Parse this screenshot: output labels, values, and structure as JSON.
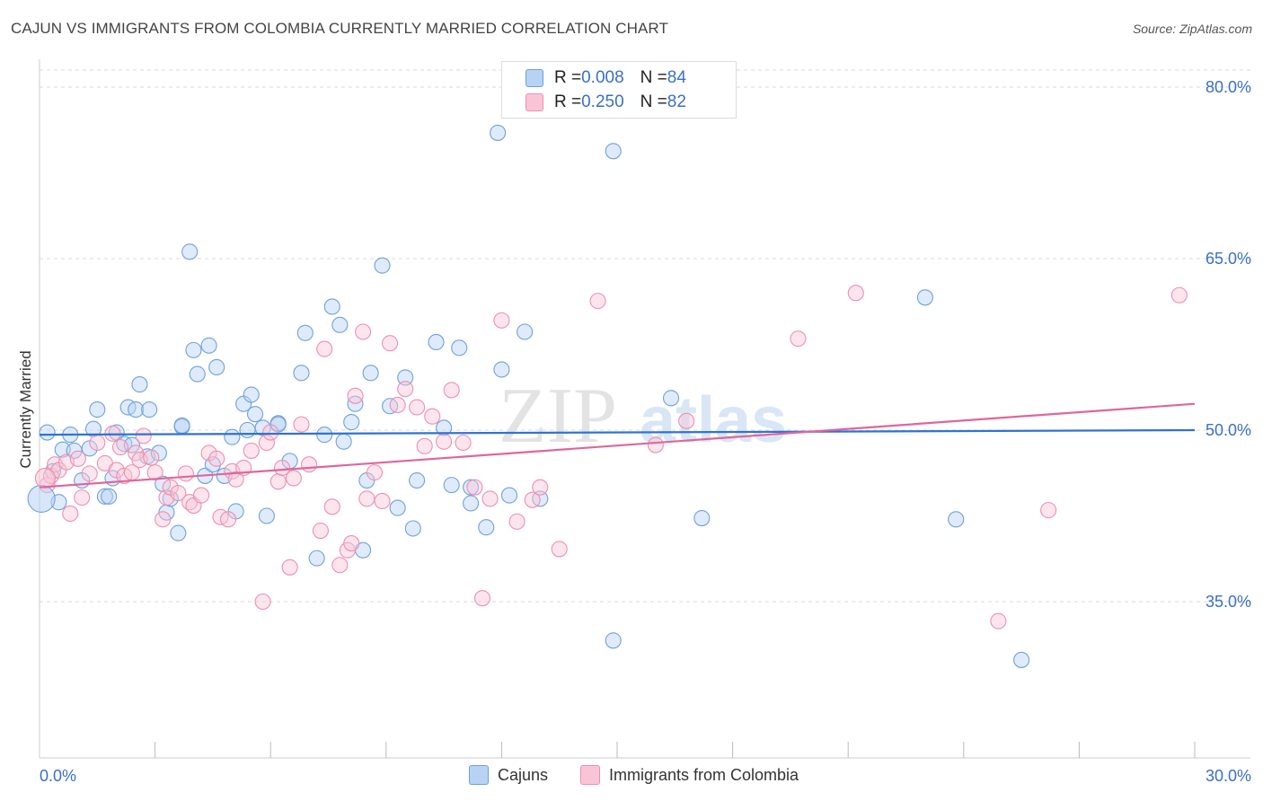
{
  "title": "CAJUN VS IMMIGRANTS FROM COLOMBIA CURRENTLY MARRIED CORRELATION CHART",
  "source": "Source: ZipAtlas.com",
  "watermark": "ZIPatlas",
  "colors": {
    "blue": "#6fa0dd",
    "blue_fill": "#b8d2f4",
    "blue_line": "#2f72d6",
    "pink": "#ee8fb0",
    "pink_fill": "#f9c5d6",
    "pink_line": "#e0669a",
    "axis_label": "#3a6fc9",
    "grid": "#d8d8d8"
  },
  "legend": {
    "rows": [
      {
        "r_label": "R = ",
        "r_value": "0.008",
        "n_label": "N = ",
        "n_value": "84",
        "series": "blue"
      },
      {
        "r_label": "R = ",
        "r_value": "0.250",
        "n_label": "N = ",
        "n_value": "82",
        "series": "pink"
      }
    ]
  },
  "chart_data": {
    "type": "scatter",
    "title": "CAJUN VS IMMIGRANTS FROM COLOMBIA CURRENTLY MARRIED CORRELATION CHART",
    "xlabel": "",
    "ylabel": "Currently Married",
    "xlim": [
      0,
      30
    ],
    "ylim": [
      20,
      82
    ],
    "x_tick_labels": [
      {
        "value": 0,
        "label": "0.0%"
      },
      {
        "value": 30,
        "label": "30.0%"
      }
    ],
    "y_tick_labels": [
      {
        "value": 80,
        "label": "80.0%"
      },
      {
        "value": 65,
        "label": "65.0%"
      },
      {
        "value": 50,
        "label": "50.0%"
      },
      {
        "value": 35,
        "label": "35.0%"
      }
    ],
    "grid": true,
    "legend_position": "top-center",
    "series": [
      {
        "name": "Cajuns",
        "color": "blue",
        "trend": {
          "x": [
            0,
            30
          ],
          "y": [
            49.6,
            50.0
          ]
        },
        "points": [
          [
            0.2,
            49.8
          ],
          [
            0.35,
            46.4
          ],
          [
            0.5,
            43.7
          ],
          [
            0.6,
            48.3
          ],
          [
            0.8,
            49.6
          ],
          [
            0.9,
            48.2
          ],
          [
            1.1,
            45.6
          ],
          [
            1.3,
            48.4
          ],
          [
            1.4,
            50.1
          ],
          [
            1.5,
            51.8
          ],
          [
            1.7,
            44.2
          ],
          [
            1.8,
            44.2
          ],
          [
            1.9,
            45.8
          ],
          [
            2.0,
            49.8
          ],
          [
            2.2,
            48.8
          ],
          [
            2.3,
            52.0
          ],
          [
            2.4,
            48.7
          ],
          [
            2.5,
            51.8
          ],
          [
            2.6,
            54.0
          ],
          [
            2.8,
            47.7
          ],
          [
            2.85,
            51.8
          ],
          [
            3.1,
            48.0
          ],
          [
            3.2,
            45.3
          ],
          [
            3.3,
            42.8
          ],
          [
            3.4,
            44.0
          ],
          [
            3.6,
            41.0
          ],
          [
            3.7,
            50.3
          ],
          [
            3.9,
            65.6
          ],
          [
            4.0,
            57.0
          ],
          [
            4.1,
            54.9
          ],
          [
            4.3,
            46.0
          ],
          [
            4.4,
            57.4
          ],
          [
            4.5,
            47.0
          ],
          [
            4.6,
            55.5
          ],
          [
            4.8,
            46.0
          ],
          [
            5.0,
            49.4
          ],
          [
            5.1,
            42.9
          ],
          [
            5.3,
            52.3
          ],
          [
            5.4,
            50.0
          ],
          [
            5.5,
            53.1
          ],
          [
            5.6,
            51.4
          ],
          [
            5.8,
            50.2
          ],
          [
            5.9,
            42.5
          ],
          [
            6.2,
            50.6
          ],
          [
            6.5,
            47.3
          ],
          [
            6.8,
            55.0
          ],
          [
            6.9,
            58.5
          ],
          [
            7.2,
            38.8
          ],
          [
            7.4,
            49.6
          ],
          [
            7.6,
            60.8
          ],
          [
            7.8,
            59.2
          ],
          [
            7.9,
            49.0
          ],
          [
            8.1,
            50.7
          ],
          [
            8.2,
            52.3
          ],
          [
            8.4,
            39.5
          ],
          [
            8.5,
            45.6
          ],
          [
            8.6,
            55.0
          ],
          [
            8.9,
            64.4
          ],
          [
            9.1,
            52.1
          ],
          [
            9.3,
            43.2
          ],
          [
            9.5,
            54.6
          ],
          [
            9.7,
            41.4
          ],
          [
            9.8,
            45.6
          ],
          [
            10.3,
            57.7
          ],
          [
            10.5,
            50.2
          ],
          [
            10.7,
            45.2
          ],
          [
            10.9,
            57.2
          ],
          [
            11.2,
            43.6
          ],
          [
            11.6,
            41.5
          ],
          [
            11.9,
            76.0
          ],
          [
            12.0,
            55.3
          ],
          [
            12.2,
            44.3
          ],
          [
            12.6,
            58.6
          ],
          [
            13.0,
            44.0
          ],
          [
            14.9,
            74.4
          ],
          [
            14.9,
            31.6
          ],
          [
            16.4,
            52.8
          ],
          [
            17.2,
            42.3
          ],
          [
            23.0,
            61.6
          ],
          [
            23.8,
            42.2
          ],
          [
            25.5,
            29.9
          ],
          [
            3.7,
            50.4
          ],
          [
            6.2,
            50.5
          ],
          [
            11.2,
            45.0
          ]
        ]
      },
      {
        "name": "Immigrants from Colombia",
        "color": "pink",
        "trend": {
          "x": [
            0,
            30
          ],
          "y": [
            45.0,
            52.3
          ]
        },
        "points": [
          [
            0.2,
            45.2
          ],
          [
            0.3,
            46.0
          ],
          [
            0.4,
            47.0
          ],
          [
            0.5,
            46.5
          ],
          [
            0.7,
            47.2
          ],
          [
            0.8,
            42.7
          ],
          [
            1.0,
            47.5
          ],
          [
            1.1,
            44.1
          ],
          [
            1.3,
            46.2
          ],
          [
            1.5,
            48.9
          ],
          [
            1.7,
            47.1
          ],
          [
            1.9,
            49.7
          ],
          [
            2.0,
            46.5
          ],
          [
            2.1,
            48.5
          ],
          [
            2.2,
            46.0
          ],
          [
            2.4,
            46.3
          ],
          [
            2.5,
            48.0
          ],
          [
            2.6,
            47.4
          ],
          [
            2.7,
            49.5
          ],
          [
            2.9,
            47.6
          ],
          [
            3.0,
            46.3
          ],
          [
            3.2,
            42.2
          ],
          [
            3.3,
            44.1
          ],
          [
            3.4,
            45.0
          ],
          [
            3.6,
            44.5
          ],
          [
            3.8,
            46.2
          ],
          [
            3.9,
            43.7
          ],
          [
            4.0,
            43.4
          ],
          [
            4.2,
            44.3
          ],
          [
            4.4,
            48.0
          ],
          [
            4.6,
            47.5
          ],
          [
            4.7,
            42.4
          ],
          [
            4.9,
            42.2
          ],
          [
            5.0,
            46.4
          ],
          [
            5.1,
            45.7
          ],
          [
            5.3,
            46.7
          ],
          [
            5.5,
            48.2
          ],
          [
            5.8,
            35.0
          ],
          [
            5.9,
            48.9
          ],
          [
            6.0,
            49.8
          ],
          [
            6.2,
            45.5
          ],
          [
            6.3,
            46.7
          ],
          [
            6.5,
            38.0
          ],
          [
            6.6,
            45.8
          ],
          [
            6.8,
            50.5
          ],
          [
            7.0,
            47.0
          ],
          [
            7.3,
            41.2
          ],
          [
            7.4,
            57.1
          ],
          [
            7.6,
            43.3
          ],
          [
            7.8,
            38.2
          ],
          [
            8.0,
            39.5
          ],
          [
            8.1,
            40.1
          ],
          [
            8.2,
            53.0
          ],
          [
            8.4,
            58.6
          ],
          [
            8.5,
            44.0
          ],
          [
            8.7,
            46.3
          ],
          [
            8.9,
            43.8
          ],
          [
            9.1,
            57.6
          ],
          [
            9.3,
            52.2
          ],
          [
            9.5,
            53.6
          ],
          [
            9.8,
            52.0
          ],
          [
            10.0,
            48.6
          ],
          [
            10.2,
            51.2
          ],
          [
            10.5,
            49.0
          ],
          [
            10.7,
            53.5
          ],
          [
            11.0,
            48.9
          ],
          [
            11.3,
            45.0
          ],
          [
            11.5,
            35.3
          ],
          [
            11.7,
            44.0
          ],
          [
            12.0,
            59.6
          ],
          [
            12.4,
            42.0
          ],
          [
            12.8,
            43.9
          ],
          [
            13.0,
            45.0
          ],
          [
            13.5,
            39.6
          ],
          [
            14.5,
            61.3
          ],
          [
            16.0,
            48.7
          ],
          [
            16.8,
            50.8
          ],
          [
            19.7,
            58.0
          ],
          [
            21.2,
            62.0
          ],
          [
            24.9,
            33.3
          ],
          [
            26.2,
            43.0
          ],
          [
            29.6,
            61.8
          ]
        ]
      }
    ]
  },
  "bottom_legend": [
    {
      "label": "Cajuns",
      "series": "blue"
    },
    {
      "label": "Immigrants from Colombia",
      "series": "pink"
    }
  ]
}
